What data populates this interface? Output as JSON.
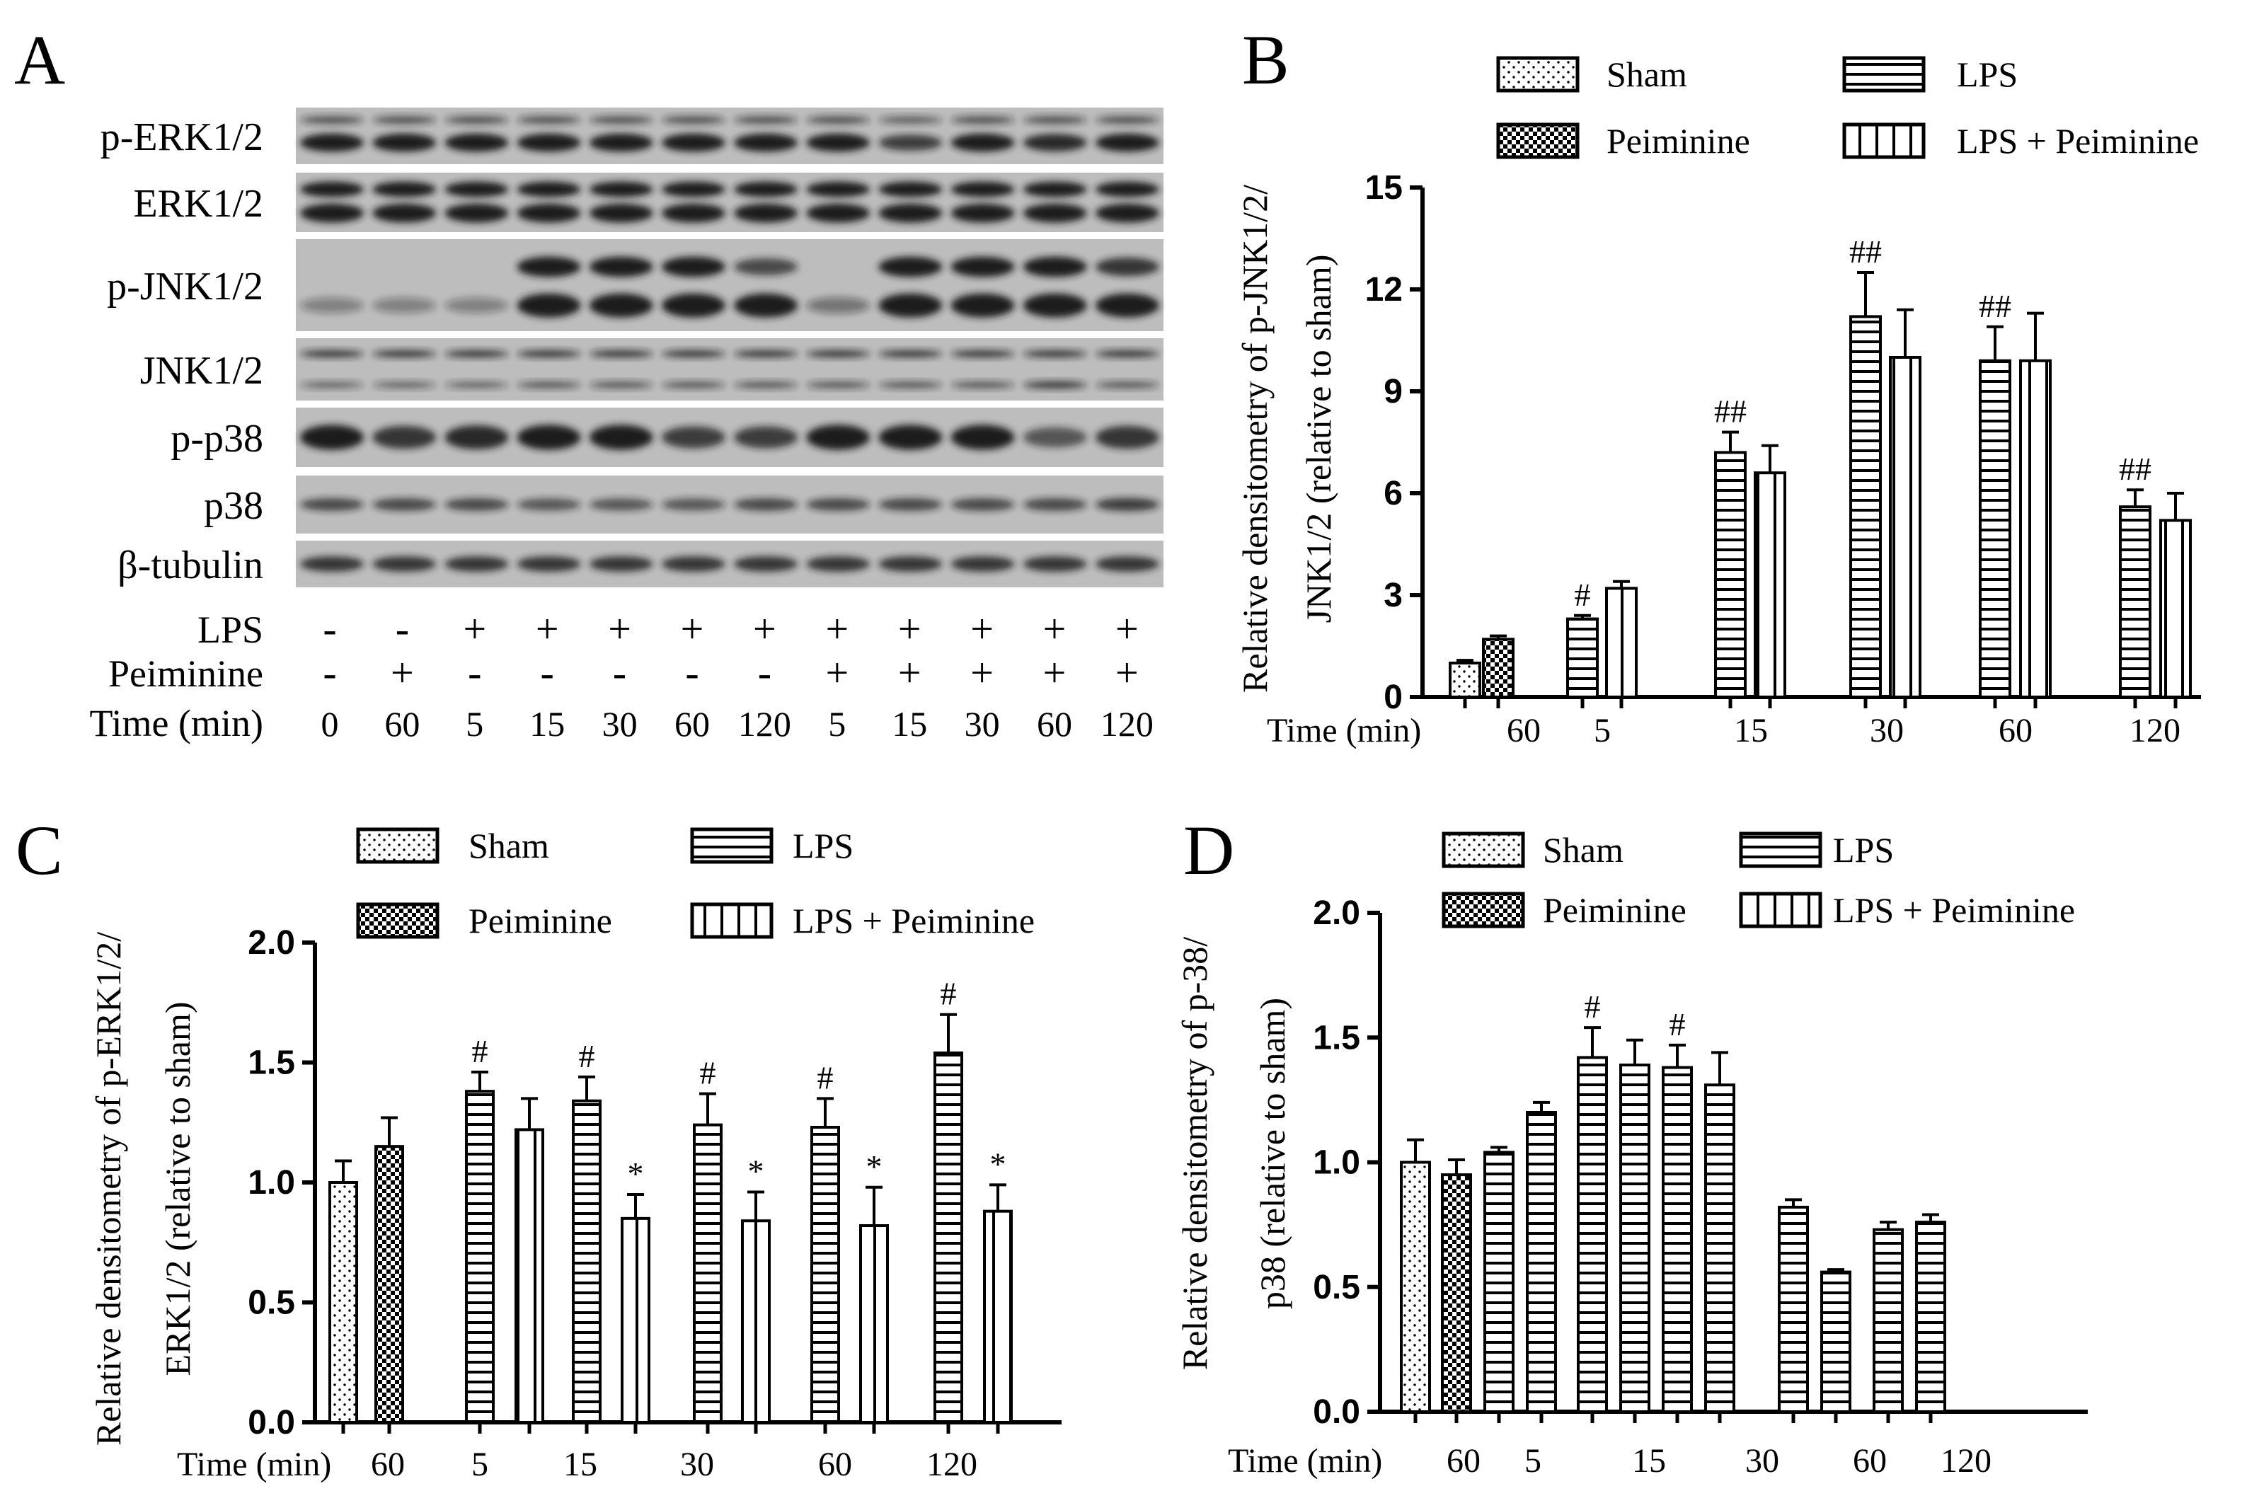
{
  "panels": {
    "A": {
      "letter": "A",
      "blots": [
        "p-ERK1/2",
        "ERK1/2",
        "p-JNK1/2",
        "JNK1/2",
        "p-p38",
        "p38",
        "β-tubulin"
      ],
      "conditions": [
        {
          "label": "LPS",
          "values": [
            "-",
            "-",
            "+",
            "+",
            "+",
            "+",
            "+",
            "+",
            "+",
            "+",
            "+",
            "+"
          ]
        },
        {
          "label": "Peiminine",
          "values": [
            "-",
            "+",
            "-",
            "-",
            "-",
            "-",
            "-",
            "+",
            "+",
            "+",
            "+",
            "+"
          ]
        },
        {
          "label": "Time (min)",
          "values": [
            "0",
            "60",
            "5",
            "15",
            "30",
            "60",
            "120",
            "5",
            "15",
            "30",
            "60",
            "120"
          ]
        }
      ]
    },
    "B": {
      "letter": "B"
    },
    "C": {
      "letter": "C"
    },
    "D": {
      "letter": "D"
    }
  },
  "colors": {
    "ink": "#000000",
    "paper": "#ffffff",
    "blot_background": "#bdbdbd",
    "blot_band": "#1c1c1c"
  },
  "chart_data": [
    {
      "id": "B",
      "type": "bar",
      "ylabel_line1": "Relative densitometry of p-JNK1/2/",
      "ylabel_line2": "JNK1/2 (relative to sham)",
      "ylim": [
        0,
        15
      ],
      "yticks": [
        "0",
        "3",
        "6",
        "9",
        "12",
        "15"
      ],
      "xlabel": "Time (min)",
      "categories": [
        "60",
        "5",
        "15",
        "30",
        "60",
        "120"
      ],
      "legend": [
        "Sham",
        "Peiminine",
        "LPS",
        "LPS + Peiminine"
      ],
      "bars": [
        {
          "series": "Sham",
          "value": 1.0,
          "err": 0.08,
          "sig": ""
        },
        {
          "series": "Peiminine",
          "value": 1.7,
          "err": 0.1,
          "sig": ""
        },
        {
          "series": "LPS",
          "value": 2.3,
          "err": 0.1,
          "sig": "#"
        },
        {
          "series": "LPS + Peiminine",
          "value": 3.2,
          "err": 0.2,
          "sig": ""
        },
        {
          "series": "LPS",
          "value": 7.2,
          "err": 0.6,
          "sig": "##"
        },
        {
          "series": "LPS + Peiminine",
          "value": 6.6,
          "err": 0.8,
          "sig": ""
        },
        {
          "series": "LPS",
          "value": 11.2,
          "err": 1.3,
          "sig": "##"
        },
        {
          "series": "LPS + Peiminine",
          "value": 10.0,
          "err": 1.4,
          "sig": ""
        },
        {
          "series": "LPS",
          "value": 9.9,
          "err": 1.0,
          "sig": "##"
        },
        {
          "series": "LPS + Peiminine",
          "value": 9.9,
          "err": 1.4,
          "sig": ""
        },
        {
          "series": "LPS",
          "value": 5.6,
          "err": 0.5,
          "sig": "##"
        },
        {
          "series": "LPS + Peiminine",
          "value": 5.2,
          "err": 0.8,
          "sig": ""
        }
      ]
    },
    {
      "id": "C",
      "type": "bar",
      "ylabel_line1": "Relative densitometry of p-ERK1/2/",
      "ylabel_line2": "ERK1/2 (relative to sham)",
      "ylim": [
        0,
        2
      ],
      "yticks": [
        "0.0",
        "0.5",
        "1.0",
        "1.5",
        "2.0"
      ],
      "xlabel": "Time (min)",
      "categories": [
        "60",
        "5",
        "15",
        "30",
        "60",
        "120"
      ],
      "legend": [
        "Sham",
        "Peiminine",
        "LPS",
        "LPS + Peiminine"
      ],
      "bars": [
        {
          "series": "Sham",
          "value": 1.0,
          "err": 0.09,
          "sig": ""
        },
        {
          "series": "Peiminine",
          "value": 1.15,
          "err": 0.12,
          "sig": ""
        },
        {
          "series": "LPS",
          "value": 1.38,
          "err": 0.08,
          "sig": "#"
        },
        {
          "series": "LPS + Peiminine",
          "value": 1.22,
          "err": 0.13,
          "sig": ""
        },
        {
          "series": "LPS",
          "value": 1.34,
          "err": 0.1,
          "sig": "#"
        },
        {
          "series": "LPS + Peiminine",
          "value": 0.85,
          "err": 0.1,
          "sig": "*"
        },
        {
          "series": "LPS",
          "value": 1.24,
          "err": 0.13,
          "sig": "#"
        },
        {
          "series": "LPS + Peiminine",
          "value": 0.84,
          "err": 0.12,
          "sig": "*"
        },
        {
          "series": "LPS",
          "value": 1.23,
          "err": 0.12,
          "sig": "#"
        },
        {
          "series": "LPS + Peiminine",
          "value": 0.82,
          "err": 0.16,
          "sig": "*"
        },
        {
          "series": "LPS",
          "value": 1.54,
          "err": 0.16,
          "sig": "#"
        },
        {
          "series": "LPS + Peiminine",
          "value": 0.88,
          "err": 0.11,
          "sig": "*"
        }
      ]
    },
    {
      "id": "D",
      "type": "bar",
      "ylabel_line1": "Relative densitometry of p-38/",
      "ylabel_line2": "p38 (relative to sham)",
      "ylim": [
        0,
        2
      ],
      "yticks": [
        "0.0",
        "0.5",
        "1.0",
        "1.5",
        "2.0"
      ],
      "xlabel": "Time (min)",
      "categories": [
        "60",
        "5",
        "15",
        "30",
        "60",
        "120"
      ],
      "legend": [
        "Sham",
        "Peiminine",
        "LPS",
        "LPS + Peiminine"
      ],
      "bars": [
        {
          "series": "Sham",
          "value": 1.0,
          "err": 0.09,
          "sig": ""
        },
        {
          "series": "Peiminine",
          "value": 0.95,
          "err": 0.06,
          "sig": ""
        },
        {
          "series": "LPS",
          "value": 1.04,
          "err": 0.02,
          "sig": ""
        },
        {
          "series": "LPS",
          "value": 1.2,
          "err": 0.04,
          "sig": ""
        },
        {
          "series": "LPS",
          "value": 1.42,
          "err": 0.12,
          "sig": "#"
        },
        {
          "series": "LPS",
          "value": 1.39,
          "err": 0.1,
          "sig": ""
        },
        {
          "series": "LPS",
          "value": 1.38,
          "err": 0.09,
          "sig": "#"
        },
        {
          "series": "LPS",
          "value": 1.31,
          "err": 0.13,
          "sig": ""
        },
        {
          "series": "LPS",
          "value": 0.82,
          "err": 0.03,
          "sig": ""
        },
        {
          "series": "LPS",
          "value": 0.56,
          "err": 0.01,
          "sig": ""
        },
        {
          "series": "LPS",
          "value": 0.73,
          "err": 0.03,
          "sig": ""
        },
        {
          "series": "LPS",
          "value": 0.76,
          "err": 0.03,
          "sig": ""
        }
      ]
    }
  ]
}
